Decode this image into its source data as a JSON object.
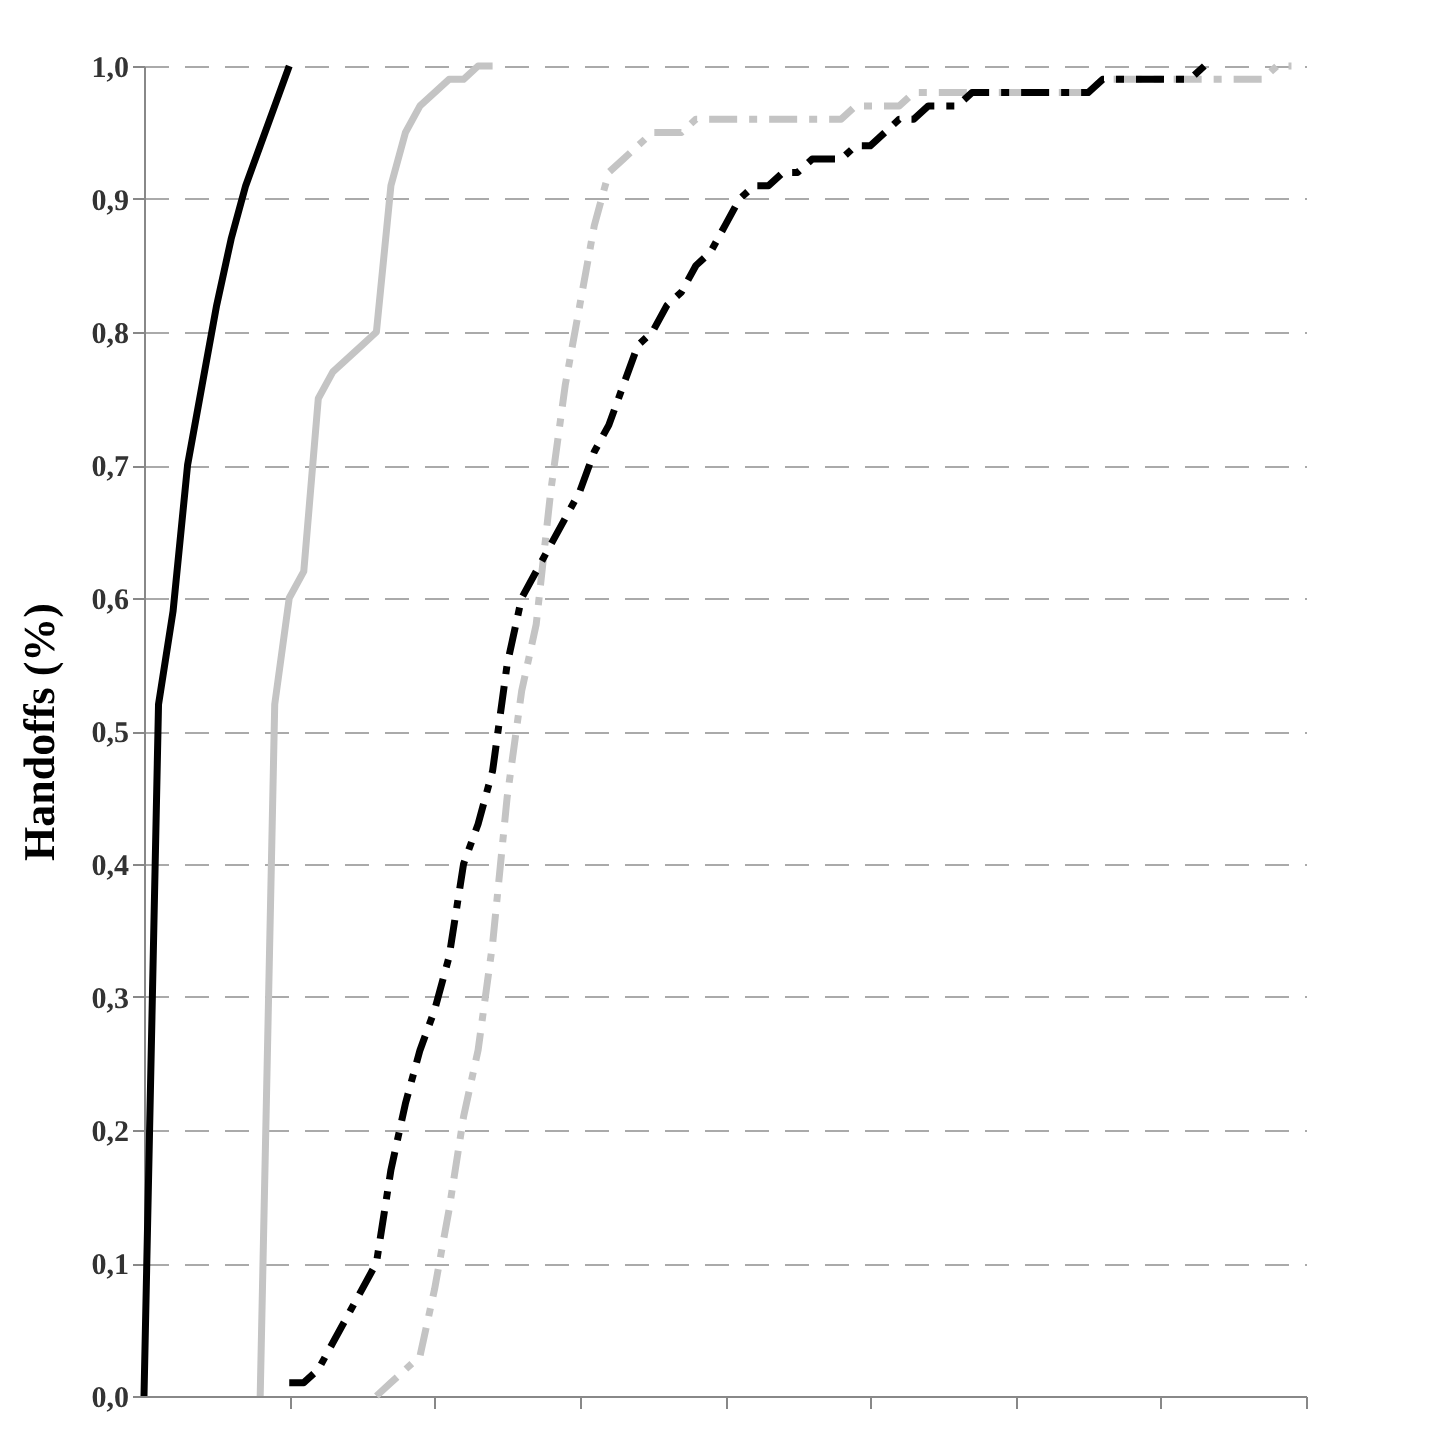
{
  "chart_data": {
    "type": "line",
    "ylabel": "Handoffs (%)",
    "categories": [
      null,
      null,
      null,
      null,
      null,
      null,
      null,
      null,
      null,
      null,
      null,
      null,
      null,
      null,
      null,
      null,
      null,
      null,
      null,
      null,
      null,
      null,
      null,
      null,
      null,
      null,
      null,
      null,
      null,
      null,
      null,
      null,
      null,
      null,
      null,
      null,
      null,
      null,
      null,
      null,
      null,
      null,
      null,
      null,
      null,
      null,
      null,
      null,
      null,
      null,
      null,
      null,
      null,
      null,
      null,
      null,
      null,
      null,
      null,
      null,
      null,
      null,
      null,
      null,
      null,
      null,
      null,
      null,
      null,
      null,
      null,
      null,
      null,
      null,
      null,
      null,
      null,
      null,
      null,
      null,
      null
    ],
    "ylim": [
      0,
      1
    ],
    "yticks": [
      {
        "value": 0,
        "label": "0,0"
      },
      {
        "value": 0.1,
        "label": "0,1"
      },
      {
        "value": 0.2,
        "label": "0,2"
      },
      {
        "value": 0.3,
        "label": "0,3"
      },
      {
        "value": 0.4,
        "label": "0,4"
      },
      {
        "value": 0.5,
        "label": "0,5"
      },
      {
        "value": 0.6,
        "label": "0,6"
      },
      {
        "value": 0.7,
        "label": "0,7"
      },
      {
        "value": 0.8,
        "label": "0,8"
      },
      {
        "value": 0.9,
        "label": "0,9"
      },
      {
        "value": 1,
        "label": "1,0"
      }
    ],
    "grid": "y",
    "tick_labels": "y",
    "marker": "none",
    "series": [
      {
        "color": "#000000",
        "line_style": "solid",
        "values": [
          0,
          0.52,
          0.59,
          0.7,
          0.76,
          0.82,
          0.87,
          0.91,
          0.94,
          0.97,
          1.0,
          null,
          null,
          null,
          null,
          null,
          null,
          null,
          null,
          null,
          null,
          null,
          null,
          null,
          null,
          null,
          null,
          null,
          null,
          null,
          null,
          null,
          null,
          null,
          null,
          null,
          null,
          null,
          null,
          null,
          null,
          null,
          null,
          null,
          null,
          null,
          null,
          null,
          null,
          null,
          null,
          null,
          null,
          null,
          null,
          null,
          null,
          null,
          null,
          null,
          null,
          null,
          null,
          null,
          null,
          null,
          null,
          null,
          null,
          null,
          null,
          null,
          null,
          null,
          null,
          null,
          null,
          null,
          null,
          null,
          null
        ]
      },
      {
        "color": "#c4c4c4",
        "line_style": "solid",
        "values": [
          null,
          null,
          null,
          null,
          null,
          null,
          null,
          null,
          0,
          0.52,
          0.6,
          0.62,
          0.75,
          0.77,
          0.78,
          0.79,
          0.8,
          0.91,
          0.95,
          0.97,
          0.98,
          0.99,
          0.99,
          1.0,
          1.0,
          null,
          null,
          null,
          null,
          null,
          null,
          null,
          null,
          null,
          null,
          null,
          null,
          null,
          null,
          null,
          null,
          null,
          null,
          null,
          null,
          null,
          null,
          null,
          null,
          null,
          null,
          null,
          null,
          null,
          null,
          null,
          null,
          null,
          null,
          null,
          null,
          null,
          null,
          null,
          null,
          null,
          null,
          null,
          null,
          null,
          null,
          null,
          null,
          null,
          null,
          null,
          null,
          null,
          null,
          null,
          null
        ]
      },
      {
        "color": "#c4c4c4",
        "line_style": "dashed",
        "values": [
          null,
          null,
          null,
          null,
          null,
          null,
          null,
          null,
          null,
          null,
          null,
          null,
          null,
          null,
          null,
          null,
          0,
          0.01,
          0.02,
          0.03,
          0.08,
          0.14,
          0.21,
          0.26,
          0.34,
          0.45,
          0.53,
          0.58,
          0.68,
          0.76,
          0.82,
          0.88,
          0.92,
          0.93,
          0.94,
          0.95,
          0.95,
          0.95,
          0.96,
          0.96,
          0.96,
          0.96,
          0.96,
          0.96,
          0.96,
          0.96,
          0.96,
          0.96,
          0.96,
          0.97,
          0.97,
          0.97,
          0.97,
          0.98,
          0.98,
          0.98,
          0.98,
          0.98,
          0.98,
          0.98,
          0.98,
          0.98,
          0.98,
          0.98,
          0.98,
          0.98,
          0.99,
          0.99,
          0.99,
          0.99,
          0.99,
          0.99,
          0.99,
          0.99,
          0.99,
          0.99,
          0.99,
          0.99,
          1.0,
          1.0,
          null
        ]
      },
      {
        "color": "#000000",
        "line_style": "dashed",
        "values": [
          null,
          null,
          null,
          null,
          null,
          null,
          null,
          null,
          null,
          null,
          0.01,
          0.01,
          0.02,
          0.04,
          0.06,
          0.08,
          0.1,
          0.17,
          0.22,
          0.26,
          0.29,
          0.33,
          0.4,
          0.43,
          0.47,
          0.55,
          0.6,
          0.62,
          0.64,
          0.66,
          0.68,
          0.71,
          0.73,
          0.76,
          0.79,
          0.8,
          0.82,
          0.83,
          0.85,
          0.86,
          0.88,
          0.9,
          0.91,
          0.91,
          0.92,
          0.92,
          0.93,
          0.93,
          0.93,
          0.94,
          0.94,
          0.95,
          0.96,
          0.96,
          0.97,
          0.97,
          0.97,
          0.98,
          0.98,
          0.98,
          0.98,
          0.98,
          0.98,
          0.98,
          0.98,
          0.98,
          0.99,
          0.99,
          0.99,
          0.99,
          0.99,
          0.99,
          0.99,
          1.0,
          null,
          null,
          null,
          null,
          null,
          null,
          null
        ]
      }
    ]
  }
}
